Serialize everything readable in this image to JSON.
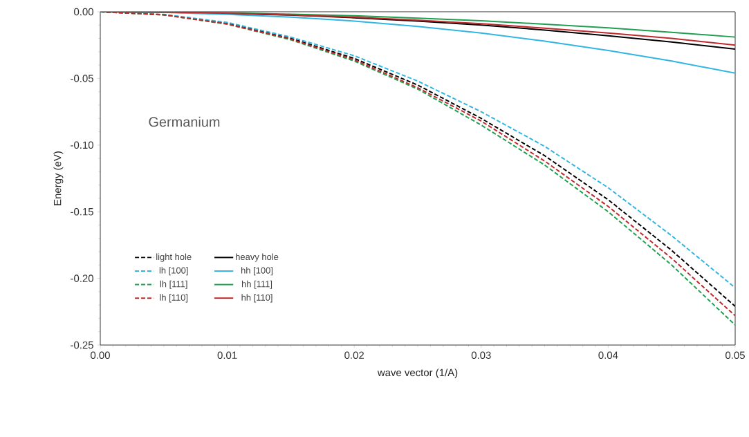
{
  "chart_data": {
    "type": "line",
    "xlabel": "wave vector (1/A)",
    "ylabel": "Energy (eV)",
    "annotations": [
      "Germanium"
    ],
    "x": [
      0,
      0.005,
      0.01,
      0.015,
      0.02,
      0.025,
      0.03,
      0.035,
      0.04,
      0.045,
      0.05
    ],
    "series": [
      {
        "name": "light hole",
        "color": "#000000",
        "line_style": "dashed",
        "values": [
          0,
          -0.0022,
          -0.0088,
          -0.02,
          -0.035,
          -0.055,
          -0.08,
          -0.108,
          -0.141,
          -0.179,
          -0.221
        ]
      },
      {
        "name": "heavy hole",
        "color": "#000000",
        "line_style": "solid",
        "values": [
          0,
          -0.0003,
          null,
          -0.0025,
          -0.0045,
          -0.007,
          -0.01,
          -0.0137,
          -0.018,
          -0.0227,
          -0.028
        ]
      },
      {
        "name": "lh [100]",
        "color": "#31b5e3",
        "line_style": "dashed",
        "values": [
          0,
          -0.002,
          -0.008,
          -0.019,
          -0.033,
          -0.052,
          -0.075,
          -0.101,
          -0.132,
          -0.168,
          -0.207
        ]
      },
      {
        "name": "hh [100]",
        "color": "#31b5e3",
        "line_style": "solid",
        "values": [
          0,
          -0.0005,
          -0.002,
          -0.004,
          -0.007,
          -0.011,
          -0.016,
          -0.022,
          -0.029,
          -0.037,
          -0.046
        ]
      },
      {
        "name": "lh [111]",
        "color": "#1fa050",
        "line_style": "dashed",
        "values": [
          0,
          -0.0023,
          -0.0094,
          -0.021,
          -0.037,
          -0.058,
          -0.085,
          -0.115,
          -0.15,
          -0.19,
          -0.235
        ]
      },
      {
        "name": "hh [111]",
        "color": "#1fa050",
        "line_style": "solid",
        "values": [
          0,
          -0.0002,
          -0.0008,
          -0.0018,
          -0.003,
          -0.0048,
          -0.0068,
          -0.0093,
          -0.012,
          -0.0154,
          -0.019
        ]
      },
      {
        "name": "lh [110]",
        "color": "#c0282a",
        "line_style": "dashed",
        "values": [
          0,
          -0.0023,
          -0.0091,
          -0.0205,
          -0.036,
          -0.057,
          -0.082,
          -0.112,
          -0.146,
          -0.185,
          -0.228
        ]
      },
      {
        "name": "hh [110]",
        "color": "#c0282a",
        "line_style": "solid",
        "values": [
          0,
          -0.0002,
          -0.001,
          -0.0023,
          -0.004,
          -0.0063,
          -0.009,
          -0.0123,
          -0.016,
          -0.02,
          -0.025
        ]
      }
    ],
    "xlim": [
      0,
      0.05
    ],
    "xticks": [
      {
        "value": 0,
        "label": "0.00"
      },
      {
        "value": 0.01,
        "label": "0.01"
      },
      {
        "value": 0.02,
        "label": "0.02"
      },
      {
        "value": 0.03,
        "label": "0.03"
      },
      {
        "value": 0.04,
        "label": "0.04"
      },
      {
        "value": 0.05,
        "label": "0.05"
      }
    ],
    "ylim": [
      -0.25,
      0
    ],
    "yticks": [
      {
        "value": -0.25,
        "label": "-0.25"
      },
      {
        "value": -0.2,
        "label": "-0.20"
      },
      {
        "value": -0.15,
        "label": "-0.15"
      },
      {
        "value": -0.1,
        "label": "-0.10"
      },
      {
        "value": -0.05,
        "label": "-0.05"
      },
      {
        "value": 0,
        "label": "0.00"
      }
    ],
    "grid": false,
    "legend": "bottom left",
    "marker": "none"
  }
}
